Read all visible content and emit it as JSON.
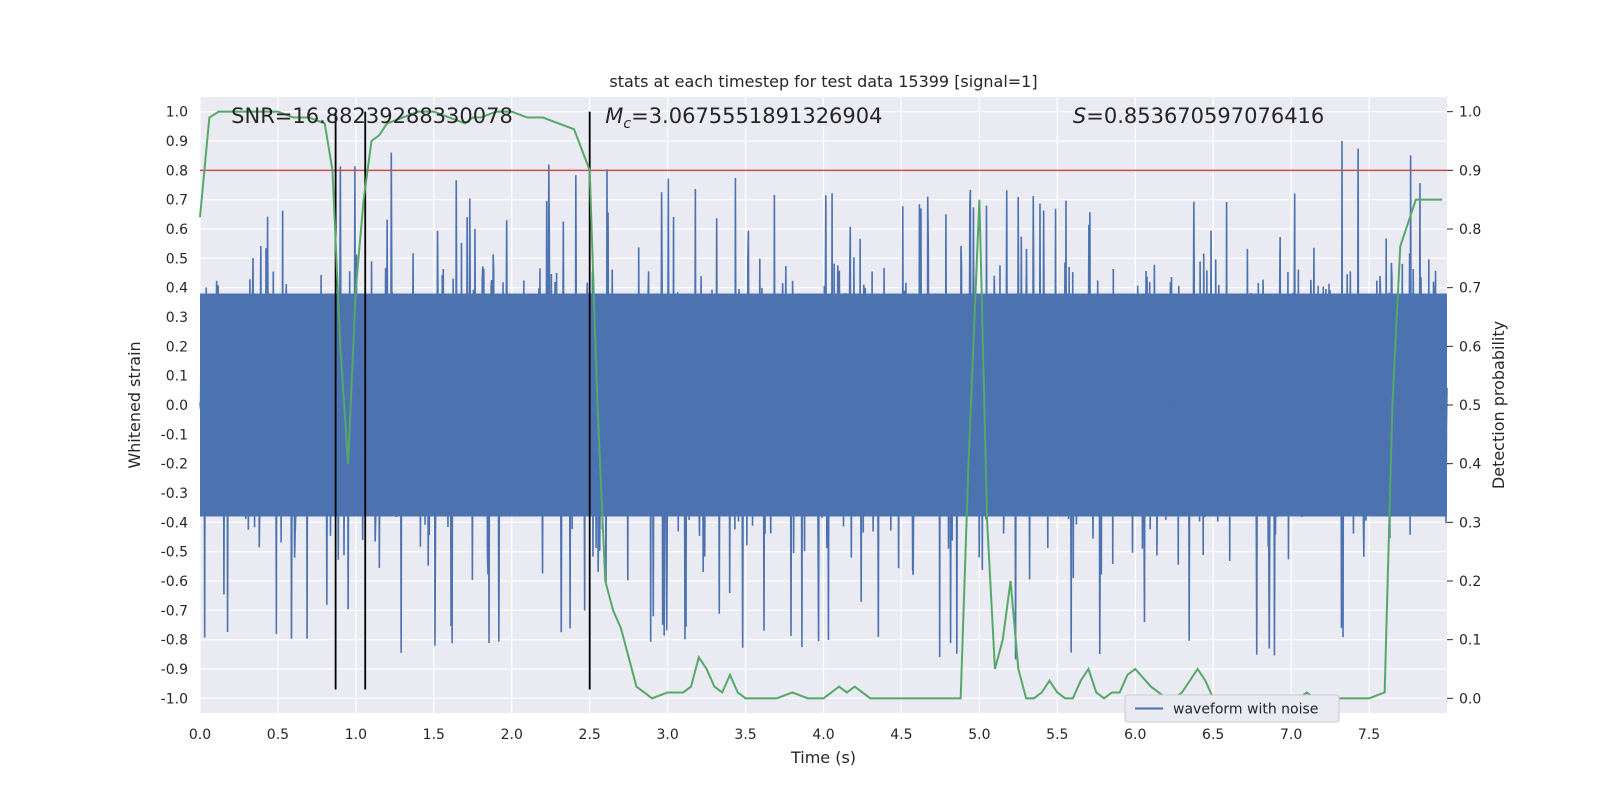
{
  "chart_data": {
    "type": "line",
    "title": "stats at each timestep for test data 15399 [signal=1]",
    "xlabel": "Time (s)",
    "ylabel": "Whitened strain",
    "y2label": "Detection probability",
    "xlim": [
      0.0,
      8.0
    ],
    "ylim": [
      -1.05,
      1.05
    ],
    "y2lim": [
      -0.025,
      1.025
    ],
    "xticks": [
      0.0,
      0.5,
      1.0,
      1.5,
      2.0,
      2.5,
      3.0,
      3.5,
      4.0,
      4.5,
      5.0,
      5.5,
      6.0,
      6.5,
      7.0,
      7.5
    ],
    "xtick_labels": [
      "0.0",
      "0.5",
      "1.0",
      "1.5",
      "2.0",
      "2.5",
      "3.0",
      "3.5",
      "4.0",
      "4.5",
      "5.0",
      "5.5",
      "6.0",
      "6.5",
      "7.0",
      "7.5"
    ],
    "yticks": [
      1.0,
      0.9,
      0.8,
      0.7,
      0.6,
      0.5,
      0.4,
      0.3,
      0.2,
      0.1,
      0.0,
      -0.1,
      -0.2,
      -0.3,
      -0.4,
      -0.5,
      -0.6,
      -0.7,
      -0.8,
      -0.9,
      -1.0
    ],
    "ytick_labels": [
      "1.0",
      "0.9",
      "0.8",
      "0.7",
      "0.6",
      "0.5",
      "0.4",
      "0.3",
      "0.2",
      "0.1",
      "0.0",
      "-0.1",
      "-0.2",
      "-0.3",
      "-0.4",
      "-0.5",
      "-0.6",
      "-0.7",
      "-0.8",
      "-0.9",
      "-1.0"
    ],
    "y2ticks": [
      1.0,
      0.9,
      0.8,
      0.7,
      0.6,
      0.5,
      0.4,
      0.3,
      0.2,
      0.1,
      0.0
    ],
    "y2tick_labels": [
      "1.0",
      "0.9",
      "0.8",
      "0.7",
      "0.6",
      "0.5",
      "0.4",
      "0.3",
      "0.2",
      "0.1",
      "0.0"
    ],
    "grid": true,
    "annotations": {
      "snr": "SNR=16.88239288330078",
      "mc_symbol": "M",
      "mc_sub": "c",
      "mc_value": "=3.0675551891326904",
      "s_symbol": "S",
      "s_value": "=0.853670597076416"
    },
    "threshold": {
      "value": 0.8,
      "color": "#c44e52"
    },
    "vlines": [
      0.87,
      1.06,
      2.5
    ],
    "vline_range": [
      -0.97,
      1.0
    ],
    "legend": {
      "label": "waveform with noise",
      "location": "lower-right"
    },
    "series": [
      {
        "name": "waveform with noise",
        "axis": "left",
        "color": "#4c72b0",
        "style": "dense noise envelope",
        "envelope_x": [
          0.0,
          0.5,
          1.0,
          1.5,
          2.0,
          2.5,
          3.0,
          3.5,
          4.0,
          4.5,
          5.0,
          5.5,
          6.0,
          6.5,
          7.0,
          7.5,
          8.0
        ],
        "envelope_upper": [
          0.6,
          0.7,
          0.9,
          0.87,
          0.75,
          0.9,
          0.78,
          0.83,
          0.8,
          0.7,
          0.8,
          0.75,
          0.75,
          0.75,
          0.75,
          1.0,
          0.8
        ],
        "envelope_lower": [
          -0.9,
          -0.8,
          -0.92,
          -0.82,
          -0.86,
          -0.9,
          -0.8,
          -0.85,
          -0.92,
          -0.8,
          -0.97,
          -0.85,
          -0.85,
          -0.85,
          -0.9,
          -0.8,
          -0.7
        ]
      },
      {
        "name": "detection probability",
        "axis": "right",
        "color": "#55a868",
        "x": [
          0.0,
          0.06,
          0.12,
          0.25,
          0.5,
          0.6,
          0.7,
          0.8,
          0.85,
          0.9,
          0.95,
          1.0,
          1.05,
          1.1,
          1.15,
          1.2,
          1.3,
          1.4,
          1.5,
          1.6,
          1.7,
          1.75,
          1.8,
          1.9,
          2.0,
          2.1,
          2.2,
          2.3,
          2.4,
          2.5,
          2.55,
          2.6,
          2.65,
          2.7,
          2.8,
          2.85,
          2.9,
          3.0,
          3.1,
          3.15,
          3.2,
          3.25,
          3.3,
          3.35,
          3.4,
          3.45,
          3.5,
          3.55,
          3.6,
          3.7,
          3.8,
          3.9,
          4.0,
          4.1,
          4.15,
          4.2,
          4.25,
          4.3,
          4.4,
          4.45,
          4.5,
          4.6,
          4.7,
          4.8,
          4.88,
          4.93,
          5.0,
          5.05,
          5.1,
          5.15,
          5.2,
          5.25,
          5.3,
          5.35,
          5.4,
          5.45,
          5.5,
          5.55,
          5.6,
          5.65,
          5.7,
          5.75,
          5.8,
          5.85,
          5.9,
          5.95,
          6.0,
          6.1,
          6.2,
          6.25,
          6.3,
          6.4,
          6.45,
          6.5,
          6.55,
          6.6,
          6.7,
          6.8,
          6.9,
          7.0,
          7.05,
          7.1,
          7.15,
          7.2,
          7.3,
          7.4,
          7.5,
          7.6,
          7.65,
          7.7,
          7.8,
          7.9,
          7.97
        ],
        "y": [
          0.82,
          0.99,
          1.0,
          1.0,
          1.0,
          0.99,
          0.99,
          0.98,
          0.9,
          0.6,
          0.4,
          0.7,
          0.85,
          0.95,
          0.96,
          0.98,
          0.99,
          1.0,
          1.0,
          0.99,
          0.98,
          0.99,
          0.99,
          1.0,
          1.0,
          0.99,
          0.99,
          0.98,
          0.97,
          0.9,
          0.5,
          0.2,
          0.15,
          0.12,
          0.02,
          0.01,
          0.0,
          0.01,
          0.01,
          0.02,
          0.07,
          0.05,
          0.02,
          0.01,
          0.04,
          0.01,
          0.0,
          0.0,
          0.0,
          0.0,
          0.01,
          0.0,
          0.0,
          0.02,
          0.01,
          0.02,
          0.01,
          0.0,
          0.0,
          0.0,
          0.0,
          0.0,
          0.0,
          0.0,
          0.0,
          0.4,
          0.85,
          0.3,
          0.05,
          0.1,
          0.2,
          0.05,
          0.0,
          0.0,
          0.01,
          0.03,
          0.01,
          0.0,
          0.0,
          0.03,
          0.05,
          0.01,
          0.0,
          0.01,
          0.01,
          0.04,
          0.05,
          0.02,
          0.0,
          0.0,
          0.01,
          0.05,
          0.03,
          0.0,
          0.0,
          0.0,
          0.0,
          0.0,
          0.0,
          0.0,
          0.0,
          0.01,
          0.0,
          0.0,
          0.0,
          0.0,
          0.0,
          0.01,
          0.5,
          0.77,
          0.85,
          0.85,
          0.85
        ]
      }
    ]
  }
}
